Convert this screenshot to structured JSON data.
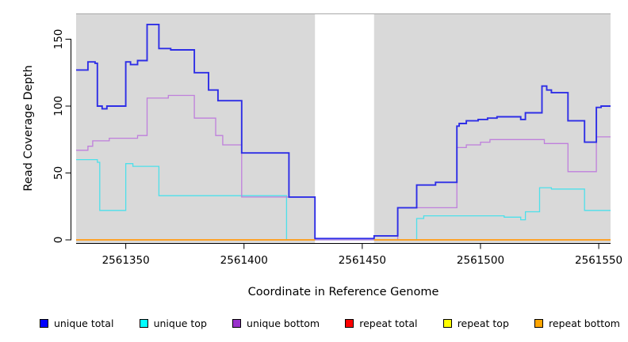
{
  "chart_data": {
    "type": "line",
    "step": true,
    "title": "",
    "xlabel": "Coordinate in Reference Genome",
    "ylabel": "Read Coverage Depth",
    "xlim": [
      2561329,
      2561555
    ],
    "ylim": [
      0,
      169
    ],
    "xticks": [
      2561350,
      2561400,
      2561450,
      2561500,
      2561550
    ],
    "yticks": [
      0,
      50,
      100,
      150
    ],
    "grid": false,
    "legend_position": "bottom",
    "plot_bg_color": "#d9d9d9",
    "gap_regions": [
      [
        2561430,
        2561455
      ]
    ],
    "shaded_regions": [
      [
        2561329,
        2561430
      ],
      [
        2561455,
        2561555
      ]
    ],
    "draw_order": [
      1,
      2,
      0,
      3,
      4,
      5
    ],
    "series": [
      {
        "name": "unique total",
        "legend_fill": "#0000ff",
        "line_color": "#2e2ee6",
        "line_width": 1.9,
        "segments": [
          [
            [
              2561329,
              127
            ],
            [
              2561334,
              133
            ],
            [
              2561337,
              132
            ],
            [
              2561338,
              100
            ],
            [
              2561340,
              98
            ],
            [
              2561342,
              100
            ],
            [
              2561350,
              133
            ],
            [
              2561352,
              131
            ],
            [
              2561355,
              134
            ],
            [
              2561359,
              161
            ],
            [
              2561364,
              143
            ],
            [
              2561369,
              142
            ],
            [
              2561379,
              125
            ],
            [
              2561385,
              112
            ],
            [
              2561389,
              104
            ],
            [
              2561399,
              65
            ],
            [
              2561419,
              32
            ],
            [
              2561430,
              1
            ],
            [
              2561455,
              3
            ],
            [
              2561465,
              24
            ],
            [
              2561473,
              41
            ],
            [
              2561481,
              43
            ],
            [
              2561490,
              85
            ],
            [
              2561491,
              87
            ],
            [
              2561494,
              89
            ],
            [
              2561499,
              90
            ],
            [
              2561503,
              91
            ],
            [
              2561507,
              92
            ],
            [
              2561517,
              90
            ],
            [
              2561519,
              95
            ],
            [
              2561526,
              115
            ],
            [
              2561528,
              112
            ],
            [
              2561530,
              110
            ],
            [
              2561537,
              89
            ],
            [
              2561544,
              73
            ],
            [
              2561549,
              99
            ],
            [
              2561551,
              100
            ],
            [
              2561555,
              100
            ]
          ]
        ]
      },
      {
        "name": "unique top",
        "legend_fill": "#00ffff",
        "line_color": "#4de0ea",
        "line_width": 1.3,
        "segments": [
          [
            [
              2561329,
              60
            ],
            [
              2561338,
              58
            ],
            [
              2561339,
              22
            ],
            [
              2561350,
              57
            ],
            [
              2561353,
              55
            ],
            [
              2561364,
              33
            ],
            [
              2561418,
              0
            ],
            [
              2561473,
              16
            ],
            [
              2561476,
              18
            ],
            [
              2561510,
              17
            ],
            [
              2561517,
              15
            ],
            [
              2561519,
              21
            ],
            [
              2561525,
              39
            ],
            [
              2561530,
              38
            ],
            [
              2561544,
              22
            ],
            [
              2561555,
              22
            ]
          ]
        ]
      },
      {
        "name": "unique bottom",
        "legend_fill": "#9932cc",
        "line_color": "#bf7fdc",
        "line_width": 1.3,
        "segments": [
          [
            [
              2561329,
              67
            ],
            [
              2561334,
              70
            ],
            [
              2561336,
              74
            ],
            [
              2561343,
              76
            ],
            [
              2561355,
              78
            ],
            [
              2561359,
              106
            ],
            [
              2561368,
              108
            ],
            [
              2561379,
              91
            ],
            [
              2561388,
              78
            ],
            [
              2561391,
              71
            ],
            [
              2561399,
              32
            ],
            [
              2561430,
              0
            ],
            [
              2561465,
              24
            ],
            [
              2561490,
              69
            ],
            [
              2561494,
              71
            ],
            [
              2561500,
              73
            ],
            [
              2561504,
              75
            ],
            [
              2561527,
              72
            ],
            [
              2561537,
              51
            ],
            [
              2561549,
              77
            ],
            [
              2561555,
              77
            ]
          ]
        ]
      },
      {
        "name": "repeat total",
        "legend_fill": "#ff0000",
        "line_color": "#dd0000",
        "line_width": 1.2,
        "segments": [
          [
            [
              2561329,
              0
            ],
            [
              2561430,
              0
            ]
          ],
          [
            [
              2561455,
              0
            ],
            [
              2561555,
              0
            ]
          ]
        ]
      },
      {
        "name": "repeat top",
        "legend_fill": "#ffff00",
        "line_color": "#f5e400",
        "line_width": 1.2,
        "segments": [
          [
            [
              2561329,
              0
            ],
            [
              2561430,
              0
            ]
          ],
          [
            [
              2561455,
              0
            ],
            [
              2561555,
              0
            ]
          ]
        ]
      },
      {
        "name": "repeat bottom",
        "legend_fill": "#ffa500",
        "line_color": "#ffa01e",
        "line_width": 1.8,
        "segments": [
          [
            [
              2561329,
              0
            ],
            [
              2561430,
              0
            ]
          ],
          [
            [
              2561455,
              0
            ],
            [
              2561555,
              0
            ]
          ]
        ]
      }
    ]
  }
}
